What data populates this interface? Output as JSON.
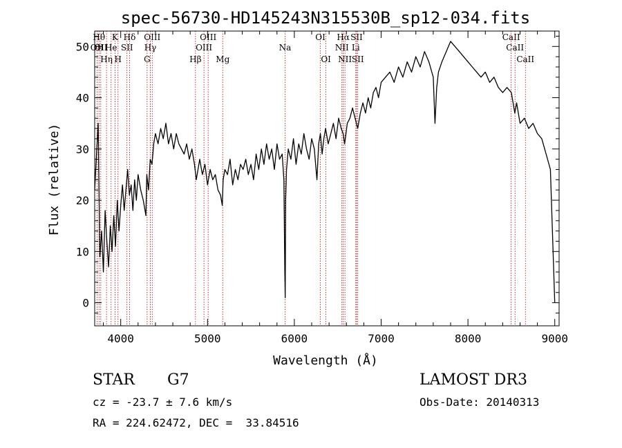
{
  "chart_data": {
    "type": "line",
    "title": "spec-56730-HD145243N315530B_sp12-034.fits",
    "xlabel": "Wavelength (Å)",
    "ylabel": "Flux (relative)",
    "xlim": [
      3700,
      9050
    ],
    "ylim": [
      -4.5,
      53
    ],
    "xticks": [
      4000,
      5000,
      6000,
      7000,
      8000,
      9000
    ],
    "yticks": [
      0,
      10,
      20,
      30,
      40,
      50
    ],
    "grid": false,
    "series": [
      {
        "values_note": "",
        "x": [
          3700,
          3740,
          3760,
          3780,
          3800,
          3820,
          3840,
          3860,
          3880,
          3900,
          3920,
          3940,
          3960,
          3980,
          4000,
          4020,
          4040,
          4060,
          4080,
          4100,
          4120,
          4140,
          4160,
          4180,
          4200,
          4230,
          4260,
          4290,
          4300,
          4320,
          4340,
          4360,
          4380,
          4400,
          4430,
          4460,
          4490,
          4520,
          4550,
          4580,
          4610,
          4640,
          4670,
          4700,
          4730,
          4760,
          4790,
          4820,
          4850,
          4870,
          4890,
          4910,
          4940,
          4970,
          5000,
          5030,
          5060,
          5090,
          5120,
          5150,
          5170,
          5180,
          5200,
          5230,
          5260,
          5290,
          5320,
          5350,
          5380,
          5410,
          5440,
          5470,
          5500,
          5530,
          5560,
          5590,
          5620,
          5650,
          5680,
          5710,
          5740,
          5770,
          5800,
          5830,
          5860,
          5880,
          5890,
          5895,
          5900,
          5910,
          5930,
          5960,
          5990,
          6020,
          6050,
          6080,
          6110,
          6140,
          6170,
          6200,
          6230,
          6260,
          6280,
          6300,
          6320,
          6340,
          6360,
          6390,
          6420,
          6450,
          6480,
          6510,
          6540,
          6562,
          6580,
          6610,
          6640,
          6670,
          6700,
          6730,
          6760,
          6790,
          6820,
          6850,
          6880,
          6910,
          6940,
          6970,
          7000,
          7050,
          7100,
          7150,
          7200,
          7250,
          7300,
          7350,
          7400,
          7450,
          7500,
          7550,
          7600,
          7620,
          7640,
          7660,
          7700,
          7750,
          7800,
          7850,
          7900,
          7950,
          8000,
          8050,
          8100,
          8150,
          8200,
          8250,
          8300,
          8350,
          8400,
          8450,
          8500,
          8540,
          8560,
          8600,
          8650,
          8700,
          8750,
          8800,
          8850,
          8900,
          8950,
          9000
        ],
        "y": [
          22,
          35,
          9,
          14,
          6,
          18,
          12,
          7,
          15,
          10,
          17,
          11,
          20,
          14,
          19,
          23,
          18,
          22,
          26,
          21,
          23,
          18,
          24,
          20,
          25,
          22,
          20,
          17,
          25,
          22,
          28,
          27,
          31,
          33,
          31,
          34,
          32,
          35,
          31,
          33,
          30,
          33,
          31,
          30,
          29,
          31,
          28,
          30,
          27,
          24,
          26,
          28,
          25,
          27,
          23,
          26,
          24,
          25,
          22,
          21,
          19,
          24,
          26,
          25,
          28,
          23,
          26,
          24,
          27,
          26,
          28,
          25,
          27,
          24,
          29,
          26,
          30,
          27,
          31,
          28,
          30,
          26,
          31,
          28,
          29,
          24,
          6,
          1,
          20,
          26,
          30,
          28,
          32,
          27,
          31,
          29,
          33,
          30,
          28,
          32,
          30,
          24,
          31,
          33,
          29,
          32,
          34,
          31,
          33,
          35,
          32,
          36,
          34,
          33,
          31,
          35,
          36,
          38,
          36,
          34,
          37,
          39,
          37,
          40,
          38,
          41,
          42,
          40,
          43,
          44,
          45,
          43,
          46,
          44,
          47,
          45,
          48,
          46,
          49,
          47,
          44,
          35,
          42,
          45,
          47,
          49,
          51,
          50,
          49,
          48,
          47,
          46,
          45,
          44,
          45,
          43,
          44,
          42,
          41,
          42,
          41,
          37,
          39,
          35,
          36,
          34,
          35,
          33,
          32,
          29,
          26,
          0
        ]
      }
    ],
    "lines": [
      {
        "x": 3727,
        "label": "OII",
        "row": 2
      },
      {
        "x": 3750,
        "label": "Hθ",
        "row": 1
      },
      {
        "x": 3770,
        "label": "OII",
        "row": 2
      },
      {
        "x": 3836,
        "label": "Hη",
        "row": 3
      },
      {
        "x": 3889,
        "label": "He",
        "row": 2
      },
      {
        "x": 3934,
        "label": "K",
        "row": 1
      },
      {
        "x": 3969,
        "label": "H",
        "row": 3
      },
      {
        "x": 4072,
        "label": "SII",
        "row": 2
      },
      {
        "x": 4102,
        "label": "Hδ",
        "row": 1
      },
      {
        "x": 4304,
        "label": "G",
        "row": 3
      },
      {
        "x": 4341,
        "label": "Hγ",
        "row": 2
      },
      {
        "x": 4363,
        "label": "OIII",
        "row": 1
      },
      {
        "x": 4861,
        "label": "Hβ",
        "row": 3
      },
      {
        "x": 4959,
        "label": "OIII",
        "row": 2
      },
      {
        "x": 5007,
        "label": "OIII",
        "row": 1
      },
      {
        "x": 5175,
        "label": "Mg",
        "row": 3
      },
      {
        "x": 5893,
        "label": "Na",
        "row": 2
      },
      {
        "x": 6300,
        "label": "OI",
        "row": 1
      },
      {
        "x": 6364,
        "label": "OI",
        "row": 3
      },
      {
        "x": 6548,
        "label": "NII",
        "row": 2
      },
      {
        "x": 6563,
        "label": "Hα",
        "row": 1
      },
      {
        "x": 6583,
        "label": "NII",
        "row": 3
      },
      {
        "x": 6708,
        "label": "Li",
        "row": 2
      },
      {
        "x": 6717,
        "label": "SII",
        "row": 1
      },
      {
        "x": 6731,
        "label": "SII",
        "row": 3
      },
      {
        "x": 8498,
        "label": "CaII",
        "row": 1
      },
      {
        "x": 8542,
        "label": "CaII",
        "row": 2
      },
      {
        "x": 8662,
        "label": "CaII",
        "row": 3
      }
    ]
  },
  "info": {
    "class_label": "STAR",
    "subclass": "G7",
    "survey": "LAMOST DR3",
    "cz": "cz = -23.7 ± 7.6 km/s",
    "obs_date": "Obs-Date: 20140313",
    "coords": "RA = 224.62472, DEC =  33.84516"
  },
  "colors": {
    "spectrum": "#000000",
    "line_markers": "#b00000",
    "axes": "#000000"
  }
}
